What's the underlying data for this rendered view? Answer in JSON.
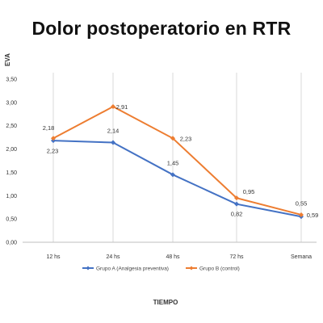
{
  "chart_data": {
    "type": "line",
    "title": "Dolor postoperatorio  en RTR",
    "xlabel": "TIEMPO",
    "ylabel": "EVA",
    "categories": [
      "12 hs",
      "24 hs",
      "48 hs",
      "72 hs",
      "Semana"
    ],
    "ylim": [
      0,
      3.5
    ],
    "yticks": [
      "0,00",
      "0,50",
      "1,00",
      "1,50",
      "2,00",
      "2,50",
      "3,00",
      "3,50"
    ],
    "grid": "vertical",
    "legend_position": "bottom",
    "series": [
      {
        "name": "Grupo A (Analgesia preventiva)",
        "values": [
          2.18,
          2.14,
          1.45,
          0.82,
          0.55
        ],
        "labels": [
          "2,18",
          "2,14",
          "1,45",
          "0,82",
          "0,55"
        ],
        "color": "#4472C4"
      },
      {
        "name": "Grupo B (control)",
        "values": [
          2.23,
          2.91,
          2.23,
          0.95,
          0.59
        ],
        "labels": [
          "2,23",
          "2,91",
          "2,23",
          "0,95",
          "0,59"
        ],
        "color": "#ED7D31"
      }
    ]
  }
}
